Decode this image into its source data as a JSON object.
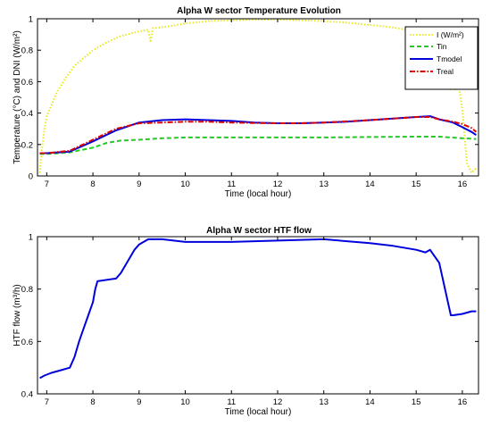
{
  "chart_data": [
    {
      "type": "line",
      "title": "Alpha W sector Temperature Evolution",
      "xlabel": "Time (local hour)",
      "ylabel": "Temperature (°C) and DNI (W/m²)",
      "xlim": [
        6.8,
        16.35
      ],
      "ylim": [
        0,
        1
      ],
      "xticks": [
        7,
        8,
        9,
        10,
        11,
        12,
        13,
        14,
        15,
        16
      ],
      "yticks": [
        0,
        0.2,
        0.4,
        0.6,
        0.8,
        1
      ],
      "grid": false,
      "legend": "top-right",
      "series": [
        {
          "name": "I (W/m²)",
          "color": "#e8e820",
          "dash": "dotted",
          "x": [
            6.85,
            6.9,
            6.95,
            7.0,
            7.2,
            7.4,
            7.6,
            7.8,
            8.0,
            8.3,
            8.6,
            9.0,
            9.2,
            9.25,
            9.3,
            9.6,
            10.0,
            10.5,
            11.0,
            11.5,
            12.0,
            12.5,
            13.0,
            13.5,
            14.0,
            14.5,
            15.0,
            15.2,
            15.3,
            15.35,
            15.4,
            15.5,
            15.6,
            15.7,
            15.75,
            15.8,
            15.85,
            15.9,
            16.0,
            16.05,
            16.1,
            16.15,
            16.2,
            16.3
          ],
          "values": [
            0.02,
            0.18,
            0.3,
            0.38,
            0.52,
            0.62,
            0.7,
            0.75,
            0.8,
            0.85,
            0.89,
            0.92,
            0.93,
            0.85,
            0.94,
            0.95,
            0.97,
            0.985,
            0.99,
            0.995,
            0.995,
            0.99,
            0.985,
            0.975,
            0.96,
            0.945,
            0.92,
            0.9,
            0.8,
            0.62,
            0.85,
            0.82,
            0.72,
            0.65,
            0.55,
            0.7,
            0.55,
            0.62,
            0.42,
            0.25,
            0.08,
            0.05,
            0.02,
            0.05
          ]
        },
        {
          "name": "Tin",
          "color": "#22cc22",
          "dash": "dashed",
          "x": [
            6.85,
            7.0,
            7.5,
            8.0,
            8.3,
            8.6,
            9.0,
            9.5,
            10.0,
            11.0,
            12.0,
            13.0,
            14.0,
            15.0,
            15.5,
            16.0,
            16.3
          ],
          "values": [
            0.14,
            0.14,
            0.15,
            0.18,
            0.21,
            0.225,
            0.23,
            0.24,
            0.245,
            0.245,
            0.245,
            0.245,
            0.248,
            0.25,
            0.25,
            0.24,
            0.235
          ]
        },
        {
          "name": "Tmodel",
          "color": "#0000dd",
          "dash": "solid",
          "x": [
            6.85,
            7.0,
            7.5,
            8.0,
            8.5,
            9.0,
            9.5,
            10.0,
            10.5,
            11.0,
            11.5,
            12.0,
            12.5,
            13.0,
            13.5,
            14.0,
            14.5,
            15.0,
            15.3,
            15.5,
            15.8,
            16.0,
            16.2,
            16.3
          ],
          "values": [
            0.145,
            0.145,
            0.155,
            0.22,
            0.29,
            0.34,
            0.355,
            0.36,
            0.355,
            0.35,
            0.34,
            0.335,
            0.335,
            0.34,
            0.345,
            0.355,
            0.365,
            0.375,
            0.38,
            0.36,
            0.34,
            0.31,
            0.28,
            0.26
          ]
        },
        {
          "name": "Treal",
          "color": "#dd0000",
          "dash": "dashdot",
          "x": [
            6.85,
            7.0,
            7.5,
            8.0,
            8.5,
            9.0,
            9.5,
            10.0,
            10.5,
            11.0,
            11.5,
            12.0,
            12.5,
            13.0,
            13.5,
            14.0,
            14.5,
            15.0,
            15.3,
            15.5,
            15.8,
            16.0,
            16.2,
            16.3
          ],
          "values": [
            0.145,
            0.145,
            0.16,
            0.23,
            0.3,
            0.335,
            0.34,
            0.345,
            0.345,
            0.34,
            0.337,
            0.335,
            0.335,
            0.34,
            0.347,
            0.355,
            0.365,
            0.375,
            0.375,
            0.36,
            0.345,
            0.33,
            0.305,
            0.28
          ]
        }
      ]
    },
    {
      "type": "line",
      "title": "Alpha W sector HTF flow",
      "xlabel": "Time (local hour)",
      "ylabel": "HTF flow (m³/h)",
      "xlim": [
        6.8,
        16.35
      ],
      "ylim": [
        0.4,
        1
      ],
      "xticks": [
        7,
        8,
        9,
        10,
        11,
        12,
        13,
        14,
        15,
        16
      ],
      "yticks": [
        0.4,
        0.6,
        0.8,
        1
      ],
      "grid": false,
      "series": [
        {
          "color": "#0000dd",
          "dash": "solid",
          "x": [
            6.85,
            6.95,
            7.1,
            7.3,
            7.5,
            7.6,
            7.7,
            7.8,
            7.9,
            8.0,
            8.05,
            8.1,
            8.5,
            8.6,
            8.8,
            8.9,
            9.0,
            9.2,
            9.5,
            10.0,
            11.0,
            12.0,
            13.0,
            14.0,
            14.5,
            15.0,
            15.2,
            15.3,
            15.5,
            15.6,
            15.7,
            15.75,
            15.8,
            16.0,
            16.2,
            16.3
          ],
          "values": [
            0.46,
            0.47,
            0.48,
            0.49,
            0.5,
            0.54,
            0.6,
            0.65,
            0.7,
            0.75,
            0.8,
            0.83,
            0.84,
            0.86,
            0.92,
            0.95,
            0.97,
            0.99,
            0.99,
            0.98,
            0.98,
            0.985,
            0.99,
            0.975,
            0.965,
            0.95,
            0.94,
            0.95,
            0.9,
            0.82,
            0.74,
            0.7,
            0.7,
            0.705,
            0.715,
            0.715
          ]
        }
      ]
    }
  ]
}
